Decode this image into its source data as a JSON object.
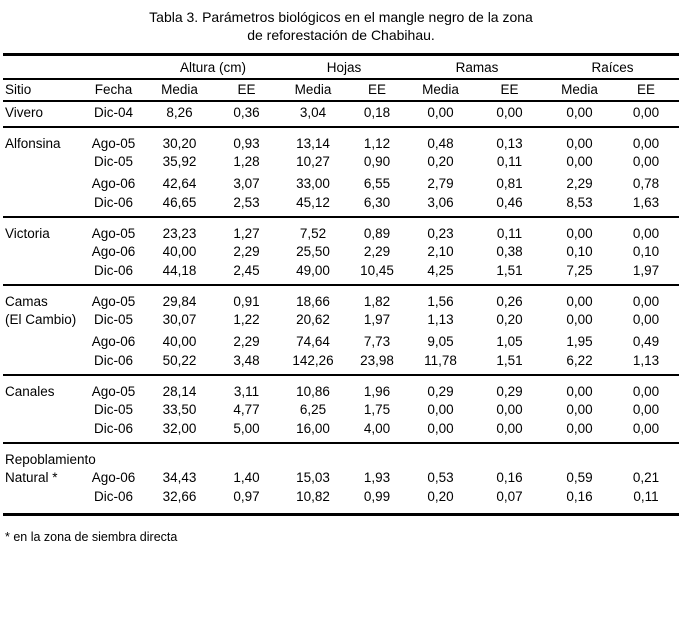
{
  "title": {
    "line1": "Tabla 3. Parámetros biológicos en el mangle negro de la zona",
    "line2": "de reforestación de Chabihau."
  },
  "table": {
    "group_headers": [
      "",
      "Altura (cm)",
      "Hojas",
      "Ramas",
      "Raíces"
    ],
    "column_headers": [
      "Sitio",
      "Fecha",
      "Media",
      "EE",
      "Media",
      "EE",
      "Media",
      "EE",
      "Media",
      "EE"
    ],
    "sections": [
      {
        "rows": [
          {
            "sitio": "Vivero",
            "fecha": "Dic-04",
            "values": [
              "8,26",
              "0,36",
              "3,04",
              "0,18",
              "0,00",
              "0,00",
              "0,00",
              "0,00"
            ]
          }
        ]
      },
      {
        "rows": [
          {
            "sitio": "Alfonsina",
            "fecha": "Ago-05",
            "values": [
              "30,20",
              "0,93",
              "13,14",
              "1,12",
              "0,48",
              "0,13",
              "0,00",
              "0,00"
            ]
          },
          {
            "sitio": "",
            "fecha": "Dic-05",
            "values": [
              "35,92",
              "1,28",
              "10,27",
              "0,90",
              "0,20",
              "0,11",
              "0,00",
              "0,00"
            ]
          },
          {
            "sitio": "",
            "fecha": "Ago-06",
            "values": [
              "42,64",
              "3,07",
              "33,00",
              "6,55",
              "2,79",
              "0,81",
              "2,29",
              "0,78"
            ]
          },
          {
            "sitio": "",
            "fecha": "Dic-06",
            "values": [
              "46,65",
              "2,53",
              "45,12",
              "6,30",
              "3,06",
              "0,46",
              "8,53",
              "1,63"
            ]
          }
        ]
      },
      {
        "rows": [
          {
            "sitio": "Victoria",
            "fecha": "Ago-05",
            "values": [
              "23,23",
              "1,27",
              "7,52",
              "0,89",
              "0,23",
              "0,11",
              "0,00",
              "0,00"
            ]
          },
          {
            "sitio": "",
            "fecha": "Ago-06",
            "values": [
              "40,00",
              "2,29",
              "25,50",
              "2,29",
              "2,10",
              "0,38",
              "0,10",
              "0,10"
            ]
          },
          {
            "sitio": "",
            "fecha": "Dic-06",
            "values": [
              "44,18",
              "2,45",
              "49,00",
              "10,45",
              "4,25",
              "1,51",
              "7,25",
              "1,97"
            ]
          }
        ]
      },
      {
        "rows": [
          {
            "sitio": "Camas",
            "fecha": "Ago-05",
            "values": [
              "29,84",
              "0,91",
              "18,66",
              "1,82",
              "1,56",
              "0,26",
              "0,00",
              "0,00"
            ]
          },
          {
            "sitio": "(El Cambio)",
            "fecha": "Dic-05",
            "values": [
              "30,07",
              "1,22",
              "20,62",
              "1,97",
              "1,13",
              "0,20",
              "0,00",
              "0,00"
            ]
          },
          {
            "sitio": "",
            "fecha": "Ago-06",
            "values": [
              "40,00",
              "2,29",
              "74,64",
              "7,73",
              "9,05",
              "1,05",
              "1,95",
              "0,49"
            ]
          },
          {
            "sitio": "",
            "fecha": "Dic-06",
            "values": [
              "50,22",
              "3,48",
              "142,26",
              "23,98",
              "11,78",
              "1,51",
              "6,22",
              "1,13"
            ]
          }
        ]
      },
      {
        "rows": [
          {
            "sitio": "Canales",
            "fecha": "Ago-05",
            "values": [
              "28,14",
              "3,11",
              "10,86",
              "1,96",
              "0,29",
              "0,29",
              "0,00",
              "0,00"
            ]
          },
          {
            "sitio": "",
            "fecha": "Dic-05",
            "values": [
              "33,50",
              "4,77",
              "6,25",
              "1,75",
              "0,00",
              "0,00",
              "0,00",
              "0,00"
            ]
          },
          {
            "sitio": "",
            "fecha": "Dic-06",
            "values": [
              "32,00",
              "5,00",
              "16,00",
              "4,00",
              "0,00",
              "0,00",
              "0,00",
              "0,00"
            ]
          }
        ]
      },
      {
        "rows": [
          {
            "sitio": "Repoblamiento",
            "fecha": "",
            "values": [
              "",
              "",
              "",
              "",
              "",
              "",
              "",
              ""
            ]
          },
          {
            "sitio": "Natural *",
            "fecha": "Ago-06",
            "values": [
              "34,43",
              "1,40",
              "15,03",
              "1,93",
              "0,53",
              "0,16",
              "0,59",
              "0,21"
            ]
          },
          {
            "sitio": "",
            "fecha": "Dic-06",
            "values": [
              "32,66",
              "0,97",
              "10,82",
              "0,99",
              "0,20",
              "0,07",
              "0,16",
              "0,11"
            ]
          }
        ]
      }
    ]
  },
  "footnote": "* en la zona de siembra directa"
}
